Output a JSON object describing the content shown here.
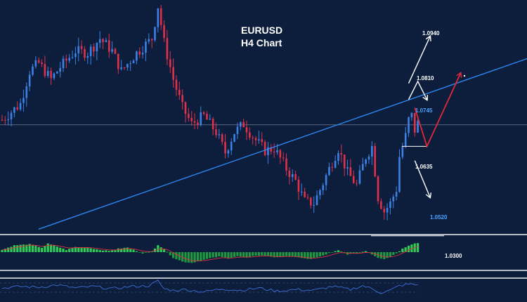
{
  "chart_data": {
    "type": "candlestick",
    "title": "EURUSD",
    "subtitle": "H4 Chart",
    "colors": {
      "background": "#0c1e3c",
      "bull": "#3c82e6",
      "bear": "#e0304a",
      "trendline": "#2f86f0",
      "white_level": "#ffffff",
      "blue_level": "#4aa3ff",
      "hist_up": "#2ecc55",
      "hist_down": "#1f9a3e",
      "signal": "#e03040",
      "rsi": "#3f6fd8",
      "separator": "#b9bdc6"
    },
    "price_range": [
      1.0455,
      1.1025
    ],
    "horizontal_line": 1.0718,
    "support_line": 1.0665,
    "target_line": 1.0445,
    "trendline": [
      [
        0,
        1.043
      ],
      [
        160,
        1.085
      ]
    ],
    "levels": [
      {
        "label": "1.0940",
        "price": 1.094,
        "color": "white"
      },
      {
        "label": "1.0810",
        "price": 1.081,
        "color": "white"
      },
      {
        "label": "1.0745",
        "price": 1.0745,
        "color": "blue"
      },
      {
        "label": "1.0635",
        "price": 1.0635,
        "color": "white"
      },
      {
        "label": "1.0520",
        "price": 1.052,
        "color": "blue"
      }
    ],
    "oscillator_label": "1.0300",
    "projections": [
      {
        "color": "white",
        "points": [
          [
            133,
            1.082
          ],
          [
            140,
            1.0935
          ]
        ]
      },
      {
        "color": "white",
        "points": [
          [
            133,
            1.078
          ],
          [
            136,
            1.0825
          ],
          [
            139,
            1.078
          ]
        ]
      },
      {
        "color": "red",
        "points": [
          [
            135,
            1.076
          ],
          [
            139,
            1.0665
          ],
          [
            150,
            1.0845
          ]
        ]
      },
      {
        "color": "white",
        "points": [
          [
            135,
            1.063
          ],
          [
            140,
            1.054
          ]
        ]
      }
    ],
    "waypoints": [
      [
        0,
        1.073
      ],
      [
        6,
        1.077
      ],
      [
        9,
        1.085
      ],
      [
        12,
        1.087
      ],
      [
        16,
        1.083
      ],
      [
        19,
        1.086
      ],
      [
        24,
        1.09
      ],
      [
        28,
        1.0895
      ],
      [
        32,
        1.093
      ],
      [
        36,
        1.09
      ],
      [
        39,
        1.085
      ],
      [
        44,
        1.0895
      ],
      [
        49,
        1.093
      ],
      [
        51,
        1.101
      ],
      [
        53,
        1.092
      ],
      [
        56,
        1.083
      ],
      [
        59,
        1.076
      ],
      [
        62,
        1.072
      ],
      [
        66,
        1.074
      ],
      [
        70,
        1.07
      ],
      [
        73,
        1.065
      ],
      [
        76,
        1.07
      ],
      [
        79,
        1.072
      ],
      [
        83,
        1.068
      ],
      [
        86,
        1.0655
      ],
      [
        89,
        1.066
      ],
      [
        93,
        1.061
      ],
      [
        96,
        1.058
      ],
      [
        99,
        1.053
      ],
      [
        102,
        1.0525
      ],
      [
        105,
        1.0575
      ],
      [
        107,
        1.061
      ],
      [
        110,
        1.066
      ],
      [
        113,
        1.06
      ],
      [
        116,
        1.057
      ],
      [
        119,
        1.064
      ],
      [
        121,
        1.0665
      ],
      [
        123,
        1.054
      ],
      [
        125,
        1.0505
      ],
      [
        127,
        1.0525
      ],
      [
        129,
        1.056
      ],
      [
        130,
        1.064
      ],
      [
        132,
        1.069
      ],
      [
        133,
        1.073
      ],
      [
        134,
        1.074
      ],
      [
        135,
        1.0705
      ],
      [
        136,
        1.0722
      ]
    ],
    "histogram_waypoints": [
      [
        0,
        0.2
      ],
      [
        4,
        0.6
      ],
      [
        9,
        0.7
      ],
      [
        13,
        0.4
      ],
      [
        15,
        0.75
      ],
      [
        18,
        0.5
      ],
      [
        21,
        0.2
      ],
      [
        24,
        0.45
      ],
      [
        28,
        0.4
      ],
      [
        32,
        0.2
      ],
      [
        35,
        0.1
      ],
      [
        38,
        0.3
      ],
      [
        41,
        0.4
      ],
      [
        44,
        0.1
      ],
      [
        46,
        -0.1
      ],
      [
        49,
        0.05
      ],
      [
        51,
        0.65
      ],
      [
        53,
        0.25
      ],
      [
        56,
        -0.5
      ],
      [
        59,
        -0.85
      ],
      [
        62,
        -0.95
      ],
      [
        65,
        -0.75
      ],
      [
        68,
        -0.55
      ],
      [
        71,
        -0.4
      ],
      [
        74,
        -0.55
      ],
      [
        77,
        -0.35
      ],
      [
        80,
        -0.5
      ],
      [
        83,
        -0.3
      ],
      [
        86,
        -0.3
      ],
      [
        89,
        -0.45
      ],
      [
        92,
        -0.4
      ],
      [
        95,
        -0.35
      ],
      [
        98,
        -0.55
      ],
      [
        101,
        -0.6
      ],
      [
        104,
        -0.4
      ],
      [
        107,
        -0.1
      ],
      [
        110,
        0.15
      ],
      [
        113,
        -0.2
      ],
      [
        116,
        -0.1
      ],
      [
        119,
        0.1
      ],
      [
        121,
        -0.2
      ],
      [
        123,
        -0.5
      ],
      [
        125,
        -0.6
      ],
      [
        127,
        -0.4
      ],
      [
        129,
        -0.1
      ],
      [
        131,
        0.3
      ],
      [
        133,
        0.6
      ],
      [
        135,
        0.8
      ],
      [
        136,
        0.8
      ]
    ],
    "rsi_waypoints": [
      [
        0,
        0.45
      ],
      [
        6,
        0.55
      ],
      [
        12,
        0.5
      ],
      [
        18,
        0.65
      ],
      [
        24,
        0.45
      ],
      [
        30,
        0.55
      ],
      [
        36,
        0.4
      ],
      [
        42,
        0.55
      ],
      [
        48,
        0.6
      ],
      [
        51,
        0.9
      ],
      [
        53,
        0.4
      ],
      [
        56,
        0.3
      ],
      [
        60,
        0.35
      ],
      [
        66,
        0.2
      ],
      [
        72,
        0.4
      ],
      [
        78,
        0.3
      ],
      [
        84,
        0.45
      ],
      [
        90,
        0.25
      ],
      [
        96,
        0.35
      ],
      [
        102,
        0.3
      ],
      [
        108,
        0.55
      ],
      [
        114,
        0.35
      ],
      [
        118,
        0.6
      ],
      [
        121,
        0.4
      ],
      [
        124,
        0.15
      ],
      [
        127,
        0.3
      ],
      [
        130,
        0.6
      ],
      [
        133,
        0.7
      ],
      [
        136,
        0.65
      ]
    ]
  }
}
